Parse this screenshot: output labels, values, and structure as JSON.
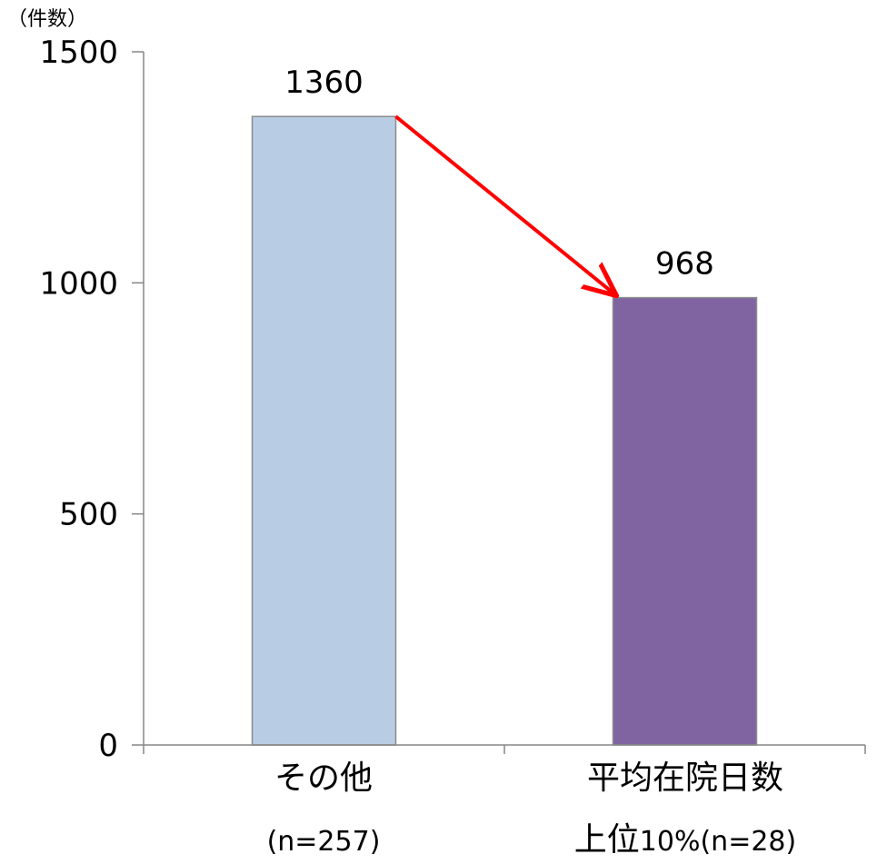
{
  "chart_data": {
    "type": "bar",
    "ylabel": "（件数）",
    "ylim": [
      0,
      1500
    ],
    "yticks": [
      0,
      500,
      1000,
      1500
    ],
    "categories": [
      {
        "line1": "その他",
        "line2": "(n=257)"
      },
      {
        "line1": "平均在院日数",
        "line2_big": "上位",
        "line2_rest": "10%(n=28)"
      }
    ],
    "values": [
      1360,
      968
    ],
    "data_labels": [
      "1360",
      "968"
    ],
    "colors": [
      "#b8cce4",
      "#8064a2"
    ],
    "arrow_color": "#ff0000",
    "grid": false,
    "legend": "none",
    "annotation": "arrow from first bar top to second bar top"
  }
}
